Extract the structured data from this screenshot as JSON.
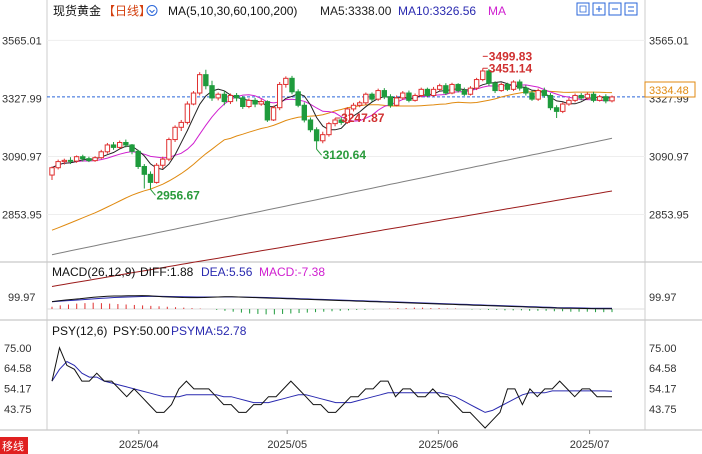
{
  "header": {
    "title": "现货黄金",
    "period": "【日线】",
    "ma_indicator": "MA(5,10,30,60,100,200)",
    "ma5": "MA5:3338.00",
    "ma10": "MA10:3326.56",
    "ma_more": "MA"
  },
  "macd": {
    "name": "MACD(26,12,9)",
    "diff": "DIFF:1.88",
    "dea": "DEA:5.56",
    "macd": "MACD:-7.38"
  },
  "psy": {
    "name": "PSY(12,6)",
    "psy": "PSY:50.00",
    "psyma": "PSYMA:52.78"
  },
  "price_box": "3334.48",
  "bottom_left": "移线",
  "colors": {
    "up": "#e03030",
    "down": "#1e9b3c",
    "ma5": "#222222",
    "ma10": "#d020d0",
    "ma30": "#e08a10",
    "ma60": "#808080",
    "ma100": "#9b1b1b",
    "current_line": "#2a66d9"
  },
  "chart_data": [
    {
      "type": "candlestick",
      "title": "现货黄金【日线】",
      "x_ticks": [
        "2025/04",
        "2025/05",
        "2025/06",
        "2025/07"
      ],
      "y_ticks": [
        3565.01,
        3327.99,
        3090.97,
        2853.95
      ],
      "ylim": [
        2660,
        3640
      ],
      "annotations": [
        {
          "label": "3499.83",
          "value": 3499.83
        },
        {
          "label": "3451.14",
          "value": 3451.14
        },
        {
          "label": "3120.64",
          "value": 3120.64
        },
        {
          "label": "2956.67",
          "value": 2956.67
        },
        {
          "label": "3247.87",
          "value": 3247.87
        }
      ],
      "last_price": 3334.48,
      "candles": [
        [
          3015,
          3045,
          2995,
          3050
        ],
        [
          3045,
          3070,
          3038,
          3078
        ],
        [
          3070,
          3075,
          3058,
          3082
        ],
        [
          3075,
          3072,
          3060,
          3088
        ],
        [
          3072,
          3090,
          3065,
          3095
        ],
        [
          3090,
          3082,
          3070,
          3098
        ],
        [
          3082,
          3074,
          3068,
          3090
        ],
        [
          3074,
          3086,
          3069,
          3092
        ],
        [
          3086,
          3110,
          3080,
          3118
        ],
        [
          3110,
          3138,
          3102,
          3146
        ],
        [
          3138,
          3128,
          3118,
          3150
        ],
        [
          3128,
          3148,
          3122,
          3156
        ],
        [
          3148,
          3138,
          3128,
          3160
        ],
        [
          3138,
          3112,
          3100,
          3142
        ],
        [
          3112,
          3050,
          3040,
          3118
        ],
        [
          3050,
          3018,
          2960,
          3060
        ],
        [
          3018,
          2985,
          2957,
          3030
        ],
        [
          2985,
          3055,
          2980,
          3064
        ],
        [
          3055,
          3080,
          3040,
          3090
        ],
        [
          3080,
          3160,
          3072,
          3168
        ],
        [
          3160,
          3210,
          3150,
          3218
        ],
        [
          3210,
          3230,
          3195,
          3240
        ],
        [
          3230,
          3305,
          3222,
          3316
        ],
        [
          3305,
          3350,
          3300,
          3358
        ],
        [
          3350,
          3425,
          3340,
          3435
        ],
        [
          3425,
          3380,
          3365,
          3445
        ],
        [
          3380,
          3330,
          3318,
          3400
        ],
        [
          3330,
          3345,
          3320,
          3352
        ],
        [
          3345,
          3315,
          3300,
          3360
        ],
        [
          3315,
          3340,
          3305,
          3348
        ],
        [
          3340,
          3330,
          3316,
          3350
        ],
        [
          3330,
          3295,
          3285,
          3338
        ],
        [
          3295,
          3320,
          3288,
          3328
        ],
        [
          3320,
          3305,
          3292,
          3330
        ],
        [
          3305,
          3315,
          3298,
          3325
        ],
        [
          3315,
          3240,
          3232,
          3320
        ],
        [
          3240,
          3290,
          3236,
          3298
        ],
        [
          3290,
          3385,
          3280,
          3395
        ],
        [
          3385,
          3410,
          3372,
          3418
        ],
        [
          3410,
          3355,
          3345,
          3420
        ],
        [
          3355,
          3300,
          3292,
          3365
        ],
        [
          3300,
          3240,
          3230,
          3312
        ],
        [
          3240,
          3200,
          3190,
          3250
        ],
        [
          3200,
          3155,
          3120,
          3210
        ],
        [
          3155,
          3180,
          3145,
          3192
        ],
        [
          3180,
          3225,
          3172,
          3232
        ],
        [
          3225,
          3240,
          3214,
          3248
        ],
        [
          3240,
          3230,
          3220,
          3252
        ],
        [
          3230,
          3285,
          3224,
          3292
        ],
        [
          3285,
          3300,
          3275,
          3310
        ],
        [
          3300,
          3310,
          3292,
          3318
        ],
        [
          3310,
          3345,
          3302,
          3352
        ],
        [
          3345,
          3325,
          3315,
          3352
        ],
        [
          3325,
          3360,
          3318,
          3368
        ],
        [
          3360,
          3335,
          3325,
          3370
        ],
        [
          3335,
          3300,
          3290,
          3345
        ],
        [
          3300,
          3330,
          3295,
          3340
        ],
        [
          3330,
          3350,
          3322,
          3358
        ],
        [
          3350,
          3320,
          3312,
          3360
        ],
        [
          3320,
          3340,
          3315,
          3348
        ],
        [
          3340,
          3365,
          3332,
          3372
        ],
        [
          3365,
          3340,
          3332,
          3372
        ],
        [
          3340,
          3365,
          3335,
          3375
        ],
        [
          3365,
          3380,
          3358,
          3388
        ],
        [
          3380,
          3350,
          3342,
          3390
        ],
        [
          3350,
          3385,
          3345,
          3392
        ],
        [
          3385,
          3360,
          3352,
          3390
        ],
        [
          3360,
          3345,
          3338,
          3372
        ],
        [
          3345,
          3370,
          3340,
          3378
        ],
        [
          3370,
          3405,
          3362,
          3412
        ],
        [
          3405,
          3440,
          3398,
          3451
        ],
        [
          3440,
          3390,
          3380,
          3448
        ],
        [
          3390,
          3360,
          3350,
          3398
        ],
        [
          3360,
          3385,
          3355,
          3392
        ],
        [
          3385,
          3365,
          3358,
          3392
        ],
        [
          3365,
          3395,
          3358,
          3402
        ],
        [
          3395,
          3370,
          3360,
          3405
        ],
        [
          3370,
          3350,
          3340,
          3382
        ],
        [
          3350,
          3325,
          3318,
          3360
        ],
        [
          3325,
          3360,
          3318,
          3368
        ],
        [
          3360,
          3340,
          3330,
          3372
        ],
        [
          3340,
          3290,
          3280,
          3350
        ],
        [
          3290,
          3275,
          3248,
          3300
        ],
        [
          3275,
          3305,
          3268,
          3312
        ],
        [
          3305,
          3320,
          3298,
          3330
        ],
        [
          3320,
          3340,
          3312,
          3348
        ],
        [
          3340,
          3330,
          3320,
          3350
        ],
        [
          3330,
          3345,
          3322,
          3352
        ],
        [
          3345,
          3320,
          3312,
          3355
        ],
        [
          3320,
          3335,
          3315,
          3342
        ],
        [
          3335,
          3318,
          3308,
          3345
        ],
        [
          3318,
          3334,
          3312,
          3340
        ]
      ],
      "ma30_start": 2790,
      "ma60_start": 2690,
      "ma100_start": 2560,
      "ma60_end": 3165,
      "ma100_end": 2950
    },
    {
      "type": "macd",
      "y_ticks": [
        99.97
      ],
      "histogram": [
        5,
        8,
        10,
        12,
        13,
        14,
        13,
        12,
        11,
        10,
        9,
        8,
        7,
        6,
        5,
        4,
        3,
        2,
        1,
        0,
        -2,
        -4,
        -6,
        -8,
        -10,
        -11,
        -12,
        -12,
        -11,
        -10,
        -9,
        -8,
        -7,
        -6,
        -5,
        -4,
        -3,
        -2,
        -2,
        -1,
        0,
        1,
        2,
        2,
        3,
        3,
        2,
        2,
        1,
        1,
        0,
        -1,
        -1,
        -2,
        -2,
        -3,
        -3,
        -3,
        -4,
        -4,
        -4,
        -5,
        -5,
        -6,
        -6,
        -6,
        -7,
        -7,
        -7
      ],
      "diff": [
        62,
        68,
        75,
        80,
        85,
        92,
        98,
        102,
        106,
        108,
        108,
        110,
        111,
        112,
        110,
        106,
        102,
        100,
        98,
        96,
        95,
        95,
        96,
        98,
        100,
        102,
        102,
        100,
        98,
        96,
        94,
        92,
        90,
        88,
        86,
        84,
        82,
        80,
        78,
        76,
        74,
        72,
        70,
        68,
        66,
        64,
        62,
        60,
        58,
        56,
        54,
        52,
        50,
        48,
        46,
        44,
        42,
        40,
        38,
        36,
        34,
        32,
        30,
        28,
        26,
        24,
        22,
        20,
        18,
        16,
        14,
        12,
        10,
        8,
        7,
        6,
        5,
        4,
        3,
        2.5,
        2,
        1.88
      ],
      "dea": [
        60,
        64,
        68,
        72,
        76,
        80,
        84,
        88,
        92,
        96,
        98,
        100,
        102,
        104,
        105,
        106,
        105,
        104,
        103,
        102,
        101,
        100,
        100,
        100,
        100,
        101,
        101,
        100,
        99,
        98,
        97,
        96,
        94,
        92,
        90,
        88,
        86,
        84,
        82,
        80,
        78,
        76,
        74,
        72,
        70,
        68,
        66,
        64,
        62,
        60,
        58,
        56,
        54,
        52,
        50,
        48,
        46,
        44,
        42,
        40,
        38,
        36,
        34,
        32,
        30,
        28,
        26,
        24,
        22,
        20,
        18,
        16,
        14,
        12,
        11,
        10,
        9,
        8,
        7,
        6.5,
        6,
        5.56
      ]
    },
    {
      "type": "psy",
      "y_ticks": [
        75.0,
        64.58,
        54.17,
        43.75
      ],
      "ylim": [
        33,
        80
      ],
      "psy": [
        58,
        75,
        66,
        64,
        58,
        58,
        62,
        58,
        58,
        54,
        50,
        54,
        50,
        46,
        42,
        42,
        46,
        54,
        58,
        54,
        54,
        54,
        50,
        46,
        46,
        42,
        42,
        46,
        46,
        50,
        50,
        54,
        58,
        54,
        50,
        46,
        46,
        42,
        42,
        46,
        50,
        50,
        54,
        54,
        58,
        58,
        50,
        54,
        54,
        50,
        50,
        54,
        50,
        50,
        46,
        42,
        42,
        38,
        34,
        38,
        42,
        54,
        54,
        46,
        54,
        50,
        54,
        54,
        58,
        54,
        50,
        54,
        54,
        50,
        50,
        50
      ],
      "psyma": [
        58,
        64,
        68,
        66,
        62,
        60,
        60,
        58,
        57,
        56,
        55,
        54,
        53,
        52,
        51,
        50,
        50,
        50,
        51,
        51,
        51,
        51,
        51,
        50,
        50,
        49,
        48,
        47,
        47,
        47,
        48,
        49,
        50,
        51,
        51,
        50,
        49,
        48,
        47,
        47,
        47,
        48,
        49,
        50,
        51,
        52,
        52,
        52,
        52,
        52,
        52,
        52,
        52,
        51,
        50,
        48,
        46,
        44,
        42,
        43,
        45,
        47,
        49,
        51,
        52,
        52,
        52,
        53,
        53,
        53,
        53,
        53,
        53,
        53,
        53,
        52.78
      ]
    }
  ]
}
